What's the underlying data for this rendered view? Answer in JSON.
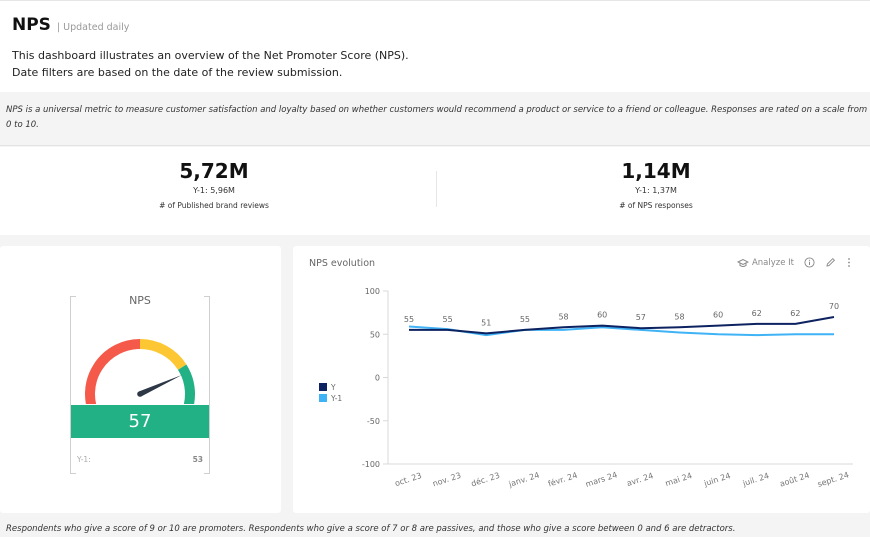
{
  "header": {
    "title": "NPS",
    "subtitle": "| Updated daily",
    "description_line1": "This dashboard illustrates an overview of the Net Promoter Score (NPS).",
    "description_line2": "Date filters are based on the date of the review submission."
  },
  "info": {
    "text": "NPS is a universal metric to measure customer satisfaction and loyalty based on whether customers would recommend a product or service to a friend or colleague. Responses are rated on a scale from 0 to 10."
  },
  "kpis": [
    {
      "value": "5,72M",
      "previous": "Y-1: 5,96M",
      "label": "# of Published brand reviews"
    },
    {
      "value": "1,14M",
      "previous": "Y-1: 1,37M",
      "label": "# of NPS responses"
    }
  ],
  "gauge": {
    "title": "NPS",
    "value": "57",
    "value_num": 57,
    "min": -100,
    "max": 100,
    "previous_label": "Y-1:",
    "previous_value": "53",
    "colors": {
      "detractor": "#f5594a",
      "passive": "#fdc734",
      "promoter": "#21b185",
      "needle": "#2d3745"
    }
  },
  "chart_card": {
    "title": "NPS evolution",
    "analyze_label": "Analyze It"
  },
  "footer": {
    "text": "Respondents who give a score of 9 or 10 are promoters. Respondents who give a score of 7 or 8 are passives, and those who give a score between 0 and 6 are detractors."
  },
  "chart_data": {
    "type": "line",
    "title": "NPS evolution",
    "xlabel": "",
    "ylabel": "",
    "categories": [
      "oct. 23",
      "nov. 23",
      "déc. 23",
      "janv. 24",
      "févr. 24",
      "mars 24",
      "avr. 24",
      "mai 24",
      "juin 24",
      "juil. 24",
      "août 24",
      "sept. 24"
    ],
    "ylim": [
      -100,
      100
    ],
    "yticks": [
      100,
      50,
      0,
      -50,
      -100
    ],
    "grid": false,
    "legend": "left",
    "series": [
      {
        "name": "Y",
        "color": "#0d2260",
        "values": [
          55,
          55,
          51,
          55,
          58,
          60,
          57,
          58,
          60,
          62,
          62,
          70
        ],
        "labels": true
      },
      {
        "name": "Y-1",
        "color": "#3fb3f5",
        "values": [
          59,
          56,
          49,
          55,
          55,
          58,
          55,
          52,
          50,
          49,
          50,
          50
        ],
        "labels": false
      }
    ]
  }
}
